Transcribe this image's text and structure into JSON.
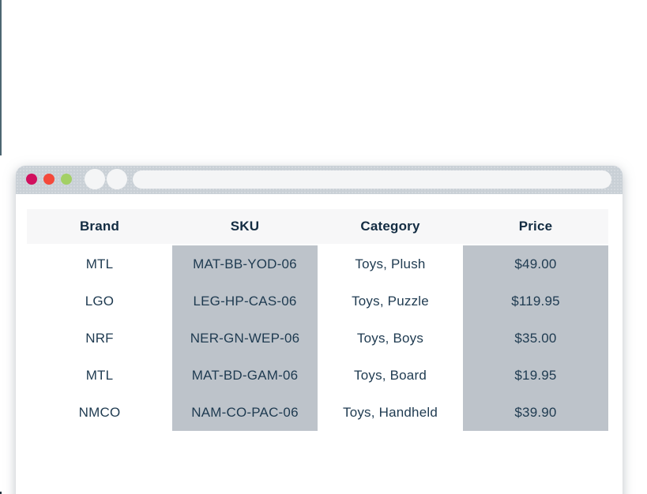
{
  "browser": {
    "traffic_lights": [
      {
        "name": "close",
        "color": "#d1105e"
      },
      {
        "name": "minimize",
        "color": "#f4493b"
      },
      {
        "name": "maximize",
        "color": "#a3d065"
      }
    ],
    "nav_buttons": [
      "back",
      "forward"
    ],
    "address_bar": {
      "value": "",
      "placeholder": ""
    }
  },
  "table": {
    "columns": [
      "Brand",
      "SKU",
      "Category",
      "Price"
    ],
    "highlighted_columns": [
      "SKU",
      "Price"
    ],
    "rows": [
      [
        "MTL",
        "MAT-BB-YOD-06",
        "Toys, Plush",
        "$49.00"
      ],
      [
        "LGO",
        "LEG-HP-CAS-06",
        "Toys, Puzzle",
        "$119.95"
      ],
      [
        "NRF",
        "NER-GN-WEP-06",
        "Toys, Boys",
        "$35.00"
      ],
      [
        "MTL",
        "MAT-BD-GAM-06",
        "Toys, Board",
        "$19.95"
      ],
      [
        "NMCO",
        "NAM-CO-PAC-06",
        "Toys, Handheld",
        "$39.90"
      ]
    ]
  },
  "colors": {
    "accent_line": "#4d6672",
    "chrome_bar": "#c9d0d6",
    "chrome_control": "#f4f5f6",
    "window_bg": "#ffffff",
    "header_bg": "#f7f7f8",
    "highlight_bg": "#bdc3ca",
    "header_text": "#132c42",
    "body_text": "#1e3a50",
    "dot_close": "#d1105e",
    "dot_minimize": "#f4493b",
    "dot_maximize": "#a3d065"
  }
}
